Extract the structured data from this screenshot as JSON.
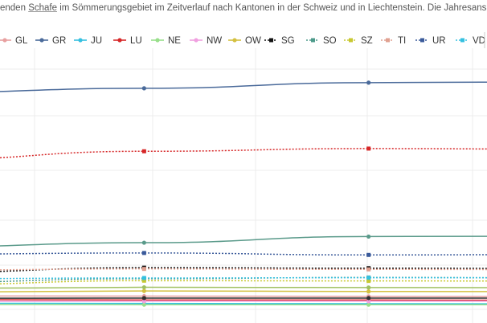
{
  "subtitle": {
    "pre": "enden ",
    "link": "Schafe",
    "post": " im Sömmerungsgebiet im Zeitverlauf nach Kantonen in der Schweiz und in Liechtenstein. Die Jahresansich"
  },
  "chart_data": {
    "type": "line",
    "grid": true,
    "legend_position": "top",
    "x": [
      1,
      2,
      3,
      4
    ],
    "ylim": [
      0,
      100
    ],
    "series": [
      {
        "name": "GL",
        "color": "#e8a0a0",
        "marker": "circle",
        "dash": "solid",
        "values": [
          5.5,
          5.4,
          5.3,
          5.2
        ]
      },
      {
        "name": "GR",
        "color": "#4a6a9a",
        "marker": "circle",
        "dash": "solid",
        "values": [
          88.5,
          90.2,
          92.5,
          92.9
        ]
      },
      {
        "name": "JU",
        "color": "#35c0e0",
        "marker": "circle",
        "dash": "solid",
        "values": [
          2.5,
          2.4,
          2.3,
          2.2
        ]
      },
      {
        "name": "LU",
        "color": "#d62728",
        "marker": "circle",
        "dash": "solid",
        "values": [
          4.0,
          3.8,
          3.8,
          3.7
        ]
      },
      {
        "name": "NE",
        "color": "#98df8a",
        "marker": "circle",
        "dash": "solid",
        "values": [
          2.0,
          1.9,
          1.9,
          1.9
        ]
      },
      {
        "name": "NW",
        "color": "#f0a0e0",
        "marker": "circle",
        "dash": "solid",
        "values": [
          3.2,
          3.3,
          3.3,
          3.3
        ]
      },
      {
        "name": "OW",
        "color": "#d4c040",
        "marker": "circle",
        "dash": "solid",
        "values": [
          7.0,
          7.5,
          7.3,
          7.2
        ]
      },
      {
        "name": "SG",
        "color": "#111111",
        "marker": "square",
        "dash": "dot",
        "values": [
          15.0,
          17.0,
          16.8,
          16.6
        ]
      },
      {
        "name": "SO",
        "color": "#4c9a8a",
        "marker": "square",
        "dash": "dot",
        "values": [
          11.0,
          12.5,
          13.0,
          12.8
        ]
      },
      {
        "name": "SZ",
        "color": "#c8c830",
        "marker": "square",
        "dash": "dot",
        "values": [
          10.0,
          11.7,
          11.6,
          11.5
        ]
      },
      {
        "name": "TI",
        "color": "#e0a090",
        "marker": "square",
        "dash": "dot",
        "values": [
          16.0,
          16.5,
          16.3,
          16.2
        ]
      },
      {
        "name": "UR",
        "color": "#3a5a9a",
        "marker": "square",
        "dash": "dot",
        "values": [
          22.5,
          23.0,
          22.2,
          22.4
        ]
      },
      {
        "name": "VD",
        "color": "#35c0e0",
        "marker": "square",
        "dash": "dot",
        "values": [
          12.5,
          12.8,
          12.9,
          12.9
        ]
      },
      {
        "name": "",
        "color": "#d62728",
        "marker": "square",
        "dash": "dot",
        "values": [
          61.0,
          64.5,
          65.6,
          65.3
        ]
      },
      {
        "name": "",
        "color": "#5a9a8a",
        "marker": "circle",
        "dash": "solid",
        "values": [
          25.5,
          27.2,
          29.7,
          29.9
        ]
      },
      {
        "name": "",
        "color": "#a0c060",
        "marker": "circle",
        "dash": "solid",
        "values": [
          8.5,
          9.0,
          8.9,
          8.8
        ]
      },
      {
        "name": "",
        "color": "#303030",
        "marker": "circle",
        "dash": "solid",
        "values": [
          4.5,
          4.6,
          4.6,
          4.6
        ]
      }
    ]
  }
}
